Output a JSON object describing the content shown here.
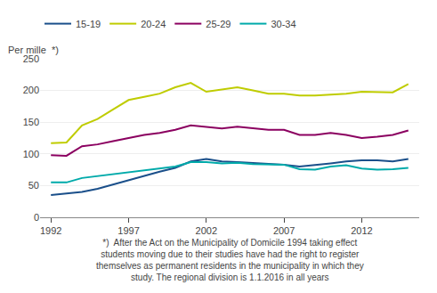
{
  "chart_data": {
    "type": "line",
    "ylabel": "Per mille  *)",
    "x": [
      1992,
      1993,
      1994,
      1995,
      1996,
      1997,
      1998,
      1999,
      2000,
      2001,
      2002,
      2003,
      2004,
      2005,
      2006,
      2007,
      2008,
      2009,
      2010,
      2011,
      2012,
      2013,
      2014,
      2015
    ],
    "series": [
      {
        "name": "15-19",
        "color": "#1a4f8a",
        "values": [
          35,
          37,
          40,
          45,
          52,
          58,
          65,
          72,
          78,
          88,
          92,
          88,
          87,
          86,
          84,
          83,
          80,
          82,
          85,
          88,
          90,
          90,
          88,
          92
        ]
      },
      {
        "name": "20-24",
        "color": "#bfcc00",
        "values": [
          117,
          118,
          145,
          155,
          170,
          185,
          190,
          195,
          205,
          212,
          198,
          202,
          205,
          200,
          195,
          195,
          192,
          192,
          193,
          195,
          198,
          197,
          197,
          210
        ]
      },
      {
        "name": "25-29",
        "color": "#8b0060",
        "values": [
          98,
          97,
          112,
          115,
          120,
          125,
          130,
          133,
          138,
          145,
          143,
          140,
          143,
          140,
          138,
          138,
          130,
          130,
          133,
          130,
          125,
          127,
          130,
          137
        ]
      },
      {
        "name": "30-34",
        "color": "#00aaaa",
        "values": [
          55,
          55,
          62,
          65,
          68,
          70,
          73,
          76,
          80,
          87,
          87,
          85,
          86,
          84,
          84,
          83,
          76,
          75,
          80,
          82,
          77,
          75,
          76,
          78
        ]
      }
    ],
    "xlim": [
      1991.3,
      2015.7
    ],
    "xticks": [
      1992,
      1997,
      2002,
      2007,
      2012
    ],
    "ylim": [
      0,
      250
    ],
    "yticks": [
      0,
      50,
      100,
      150,
      200,
      250
    ],
    "grid": true,
    "legend": "upper left",
    "annotations": [
      "*)  After the Act on the Municipality of Domicile 1994 taking effect",
      "students moving due to their studies have had the right to register",
      "themselves as permanent residents in the municipality in which they",
      "study. The regional division is 1.1.2016 in all years"
    ]
  }
}
